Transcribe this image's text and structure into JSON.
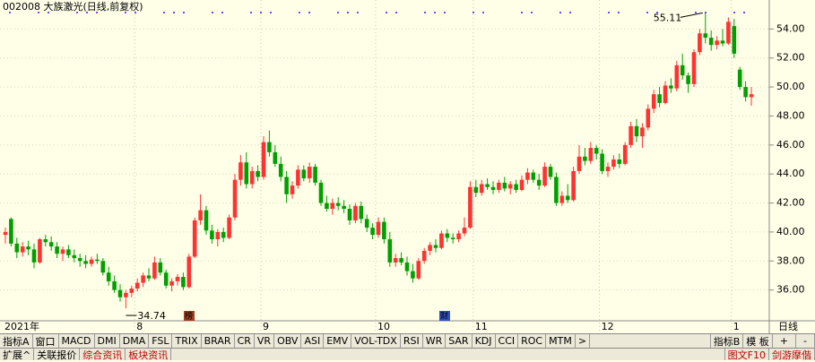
{
  "chart_data": {
    "type": "candlestick",
    "title": "002008 大族激光(日线,前复权)",
    "period_label": "日线",
    "ylim": [
      34,
      56
    ],
    "yticks": [
      {
        "value": 36,
        "label": "36.00"
      },
      {
        "value": 38,
        "label": "38.00"
      },
      {
        "value": 40,
        "label": "40.00"
      },
      {
        "value": 42,
        "label": "42.00"
      },
      {
        "value": 44,
        "label": "44.00"
      },
      {
        "value": 46,
        "label": "46.00"
      },
      {
        "value": 48,
        "label": "48.00"
      },
      {
        "value": 50,
        "label": "50.00"
      },
      {
        "value": 52,
        "label": "52.00"
      },
      {
        "value": 54,
        "label": "54.00"
      }
    ],
    "up_color": "#ff3232",
    "down_color": "#00a000",
    "categories": [
      "2021年",
      null,
      null,
      null,
      null,
      null,
      null,
      null,
      null,
      null,
      null,
      null,
      null,
      null,
      null,
      null,
      null,
      null,
      null,
      null,
      null,
      null,
      null,
      "8",
      null,
      null,
      null,
      null,
      null,
      null,
      null,
      null,
      null,
      null,
      null,
      null,
      null,
      null,
      null,
      null,
      null,
      null,
      null,
      null,
      null,
      "9",
      null,
      null,
      null,
      null,
      null,
      null,
      null,
      null,
      null,
      null,
      null,
      null,
      null,
      null,
      null,
      null,
      null,
      null,
      null,
      "10",
      null,
      null,
      null,
      null,
      null,
      null,
      null,
      null,
      null,
      null,
      null,
      null,
      null,
      null,
      null,
      null,
      "11",
      null,
      null,
      null,
      null,
      null,
      null,
      null,
      null,
      null,
      null,
      null,
      null,
      null,
      null,
      null,
      null,
      null,
      null,
      null,
      null,
      null,
      "12",
      null,
      null,
      null,
      null,
      null,
      null,
      null,
      null,
      null,
      null,
      null,
      null,
      null,
      null,
      null,
      null,
      null,
      null,
      null,
      null,
      null,
      null,
      "1",
      null,
      null,
      null
    ],
    "candles": [
      [
        39.8,
        40.3,
        39.2,
        40.0
      ],
      [
        40.9,
        41.0,
        39.0,
        39.2
      ],
      [
        39.2,
        39.6,
        38.2,
        38.6
      ],
      [
        38.6,
        39.3,
        38.3,
        39.0
      ],
      [
        39.0,
        39.4,
        38.4,
        38.8
      ],
      [
        38.8,
        39.2,
        37.5,
        37.9
      ],
      [
        37.9,
        39.6,
        37.8,
        39.5
      ],
      [
        39.5,
        39.8,
        39.0,
        39.3
      ],
      [
        39.3,
        39.7,
        38.7,
        39.0
      ],
      [
        39.0,
        39.3,
        38.2,
        38.5
      ],
      [
        38.5,
        39.0,
        38.0,
        38.8
      ],
      [
        38.8,
        39.1,
        38.2,
        38.4
      ],
      [
        38.4,
        38.8,
        37.9,
        38.2
      ],
      [
        38.2,
        38.5,
        37.6,
        38.0
      ],
      [
        38.0,
        38.4,
        37.5,
        37.8
      ],
      [
        37.8,
        38.3,
        37.6,
        38.1
      ],
      [
        38.1,
        38.5,
        37.8,
        38.0
      ],
      [
        38.0,
        38.2,
        37.0,
        37.2
      ],
      [
        37.2,
        37.6,
        36.3,
        36.6
      ],
      [
        36.6,
        37.0,
        35.8,
        36.0
      ],
      [
        36.0,
        36.4,
        35.2,
        35.5
      ],
      [
        35.5,
        36.0,
        34.74,
        35.8
      ],
      [
        35.8,
        36.3,
        35.5,
        36.1
      ],
      [
        36.1,
        36.8,
        35.9,
        36.5
      ],
      [
        36.5,
        37.2,
        36.2,
        37.0
      ],
      [
        37.0,
        37.5,
        36.6,
        36.8
      ],
      [
        36.8,
        38.3,
        36.7,
        37.9
      ],
      [
        37.9,
        38.2,
        37.0,
        37.2
      ],
      [
        37.2,
        37.4,
        36.1,
        36.3
      ],
      [
        36.3,
        36.8,
        35.9,
        36.6
      ],
      [
        36.6,
        37.1,
        36.3,
        36.9
      ],
      [
        36.9,
        37.2,
        36.0,
        36.2
      ],
      [
        36.2,
        38.5,
        36.1,
        38.3
      ],
      [
        38.3,
        41.0,
        38.2,
        40.8
      ],
      [
        40.8,
        42.6,
        40.5,
        41.5
      ],
      [
        41.5,
        41.8,
        39.8,
        40.1
      ],
      [
        40.1,
        40.5,
        39.2,
        39.5
      ],
      [
        39.5,
        40.2,
        39.0,
        40.0
      ],
      [
        40.0,
        40.3,
        39.3,
        39.6
      ],
      [
        39.6,
        41.2,
        39.5,
        41.0
      ],
      [
        41.0,
        44.0,
        40.8,
        43.6
      ],
      [
        43.6,
        45.3,
        43.2,
        44.8
      ],
      [
        44.8,
        45.5,
        43.0,
        43.3
      ],
      [
        43.3,
        44.5,
        43.0,
        44.2
      ],
      [
        44.2,
        44.6,
        43.5,
        43.8
      ],
      [
        43.8,
        46.6,
        43.6,
        46.2
      ],
      [
        46.2,
        47.0,
        45.2,
        45.5
      ],
      [
        45.5,
        46.0,
        44.5,
        44.7
      ],
      [
        44.7,
        45.2,
        43.5,
        43.8
      ],
      [
        43.8,
        44.2,
        42.0,
        42.6
      ],
      [
        42.6,
        43.5,
        42.3,
        43.2
      ],
      [
        43.2,
        44.6,
        43.0,
        44.3
      ],
      [
        44.3,
        44.6,
        43.5,
        43.7
      ],
      [
        43.7,
        44.8,
        43.4,
        44.5
      ],
      [
        44.5,
        44.7,
        43.2,
        43.4
      ],
      [
        43.4,
        43.6,
        41.8,
        42.0
      ],
      [
        42.0,
        42.5,
        41.4,
        41.6
      ],
      [
        41.6,
        42.3,
        41.2,
        42.0
      ],
      [
        42.0,
        42.4,
        41.5,
        41.8
      ],
      [
        41.8,
        42.2,
        41.3,
        41.6
      ],
      [
        41.6,
        41.9,
        40.5,
        40.8
      ],
      [
        40.8,
        42.0,
        40.6,
        41.8
      ],
      [
        41.8,
        42.1,
        40.6,
        40.9
      ],
      [
        40.9,
        41.2,
        40.0,
        40.3
      ],
      [
        40.3,
        40.6,
        39.5,
        39.8
      ],
      [
        39.8,
        41.0,
        39.6,
        40.7
      ],
      [
        40.7,
        41.0,
        39.2,
        39.5
      ],
      [
        39.5,
        40.0,
        37.6,
        37.9
      ],
      [
        37.9,
        38.5,
        37.6,
        38.2
      ],
      [
        38.2,
        38.6,
        37.7,
        37.9
      ],
      [
        37.9,
        38.3,
        37.0,
        37.3
      ],
      [
        37.3,
        37.8,
        36.5,
        36.8
      ],
      [
        36.8,
        38.2,
        36.7,
        38.0
      ],
      [
        38.0,
        38.9,
        37.8,
        38.7
      ],
      [
        38.7,
        39.3,
        38.4,
        39.1
      ],
      [
        39.1,
        39.5,
        38.6,
        38.9
      ],
      [
        38.9,
        40.1,
        38.8,
        39.9
      ],
      [
        39.9,
        40.2,
        39.3,
        39.6
      ],
      [
        39.6,
        39.9,
        39.2,
        39.5
      ],
      [
        39.5,
        40.1,
        39.3,
        39.9
      ],
      [
        39.9,
        41.0,
        39.7,
        40.3
      ],
      [
        40.3,
        43.5,
        40.2,
        43.1
      ],
      [
        43.1,
        43.6,
        42.4,
        42.7
      ],
      [
        42.7,
        43.6,
        42.5,
        43.3
      ],
      [
        43.3,
        43.7,
        42.9,
        43.1
      ],
      [
        43.1,
        43.5,
        42.6,
        42.9
      ],
      [
        42.9,
        43.6,
        42.7,
        43.4
      ],
      [
        43.4,
        43.8,
        42.8,
        43.0
      ],
      [
        43.0,
        43.5,
        42.6,
        43.3
      ],
      [
        43.3,
        43.6,
        42.7,
        42.9
      ],
      [
        42.9,
        43.9,
        42.8,
        43.6
      ],
      [
        43.6,
        44.4,
        43.3,
        44.1
      ],
      [
        44.1,
        44.3,
        43.4,
        43.6
      ],
      [
        43.6,
        44.0,
        42.9,
        43.2
      ],
      [
        43.2,
        44.8,
        43.1,
        44.5
      ],
      [
        44.5,
        44.7,
        43.6,
        43.8
      ],
      [
        43.8,
        44.1,
        41.8,
        42.0
      ],
      [
        42.0,
        42.8,
        41.8,
        42.5
      ],
      [
        42.5,
        43.3,
        42.0,
        42.2
      ],
      [
        42.2,
        44.5,
        42.1,
        44.2
      ],
      [
        44.2,
        46.0,
        44.0,
        45.2
      ],
      [
        45.2,
        45.8,
        44.6,
        44.9
      ],
      [
        44.9,
        46.2,
        44.7,
        45.8
      ],
      [
        45.8,
        46.0,
        45.0,
        45.4
      ],
      [
        45.4,
        45.7,
        44.0,
        44.2
      ],
      [
        44.2,
        44.8,
        43.8,
        44.5
      ],
      [
        44.5,
        45.3,
        44.3,
        45.0
      ],
      [
        45.0,
        45.4,
        44.4,
        44.7
      ],
      [
        44.7,
        46.2,
        44.6,
        46.0
      ],
      [
        46.0,
        47.6,
        45.8,
        47.3
      ],
      [
        47.3,
        47.8,
        46.2,
        46.6
      ],
      [
        46.6,
        47.5,
        45.8,
        47.2
      ],
      [
        47.2,
        48.8,
        47.0,
        48.5
      ],
      [
        48.5,
        49.8,
        48.2,
        49.5
      ],
      [
        49.5,
        50.0,
        48.6,
        48.9
      ],
      [
        48.9,
        50.4,
        48.8,
        50.1
      ],
      [
        50.1,
        50.6,
        49.6,
        49.9
      ],
      [
        49.9,
        51.8,
        49.7,
        51.5
      ],
      [
        51.5,
        52.3,
        50.5,
        50.8
      ],
      [
        50.8,
        51.0,
        49.6,
        50.2
      ],
      [
        50.2,
        52.6,
        50.0,
        52.4
      ],
      [
        52.4,
        54.0,
        52.2,
        53.7
      ],
      [
        53.7,
        55.11,
        53.0,
        53.4
      ],
      [
        53.4,
        53.9,
        52.5,
        52.9
      ],
      [
        52.9,
        53.5,
        52.6,
        53.2
      ],
      [
        53.2,
        54.0,
        52.8,
        53.0
      ],
      [
        53.0,
        54.8,
        52.9,
        54.5
      ],
      [
        54.2,
        54.7,
        52.0,
        52.3
      ],
      [
        51.2,
        51.4,
        49.8,
        50.0
      ],
      [
        50.0,
        50.4,
        49.0,
        49.3
      ],
      [
        49.3,
        50.0,
        48.7,
        49.5
      ]
    ],
    "badges": [
      "榜",
      "财"
    ]
  },
  "toolbar": {
    "tabs": [
      "指标A",
      "窗口",
      "MACD",
      "DMI",
      "DMA",
      "FSL",
      "TRIX",
      "BRAR",
      "CR",
      "VR",
      "OBV",
      "ASI",
      "EMV",
      "VOL-TDX",
      "RSI",
      "WR",
      "SAR",
      "KDJ",
      "CCI",
      "ROC",
      "MTM",
      ">"
    ],
    "right_tabs": [
      "指标B",
      "模 板"
    ],
    "zoom": [
      "+",
      "-"
    ]
  },
  "footer": {
    "tabs": [
      "扩展^",
      "关联报价",
      "综合资讯",
      "板块资讯"
    ],
    "right": "图文F10",
    "right2": "剑游摩偕"
  }
}
